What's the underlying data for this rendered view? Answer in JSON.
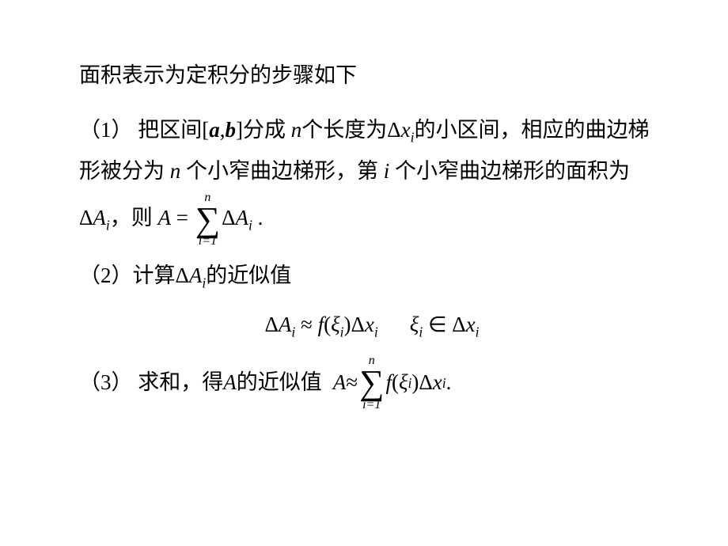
{
  "title": "面积表示为定积分的步骤如下",
  "step1": {
    "label": "（1） 把区间",
    "interval_open": "[",
    "a": "a",
    "comma": ",",
    "b": "b",
    "interval_close": "]",
    "t2": "分成  ",
    "n": "n",
    "t3": "个长度为",
    "dx": "Δ",
    "x": "x",
    "xi_sub": "i",
    "t4": "的小区间，相应的曲边梯形被分为",
    "n2": " n ",
    "t5": "个小窄曲边梯形，第",
    "i": " i ",
    "t6": "个小窄曲边梯形的面积为",
    "dA": "Δ",
    "A": "A",
    "Ai_sub": "i",
    "t7": "，则",
    "Aeq": "A",
    "eq": " = ",
    "sum_top": "n",
    "sum_sym": "∑",
    "sum_bot": "i=1",
    "rhs_dA": "Δ",
    "rhs_A": "A",
    "rhs_i": "i",
    "period": " ."
  },
  "step2": {
    "label": "（2）计算",
    "dA": "Δ",
    "A": "A",
    "i": "i",
    "t2": "的近似值",
    "lhs_dA": "Δ",
    "lhs_A": "A",
    "lhs_i": "i",
    "approx": " ≈ ",
    "f": "f",
    "lp": "(",
    "xi": "ξ",
    "xi_i": "i",
    "rp": ")",
    "dx": "Δ",
    "x": "x",
    "x_i": "i",
    "cond_xi": "ξ",
    "cond_i": "i",
    "in": " ∈ ",
    "cond_dx": "Δ",
    "cond_x": "x",
    "cond_xi2": "i"
  },
  "step3": {
    "label": "（3） 求和，得",
    "A": "A",
    "t2": "的近似值",
    "lhs_A": "A",
    "approx": " ≈ ",
    "sum_top": "n",
    "sum_sym": "∑",
    "sum_bot": "i=1",
    "f": "f",
    "lp": "(",
    "xi": "ξ",
    "xi_i": "i",
    "rp": ")",
    "dx": "Δ",
    "x": "x",
    "x_i": "i",
    "period": "."
  }
}
